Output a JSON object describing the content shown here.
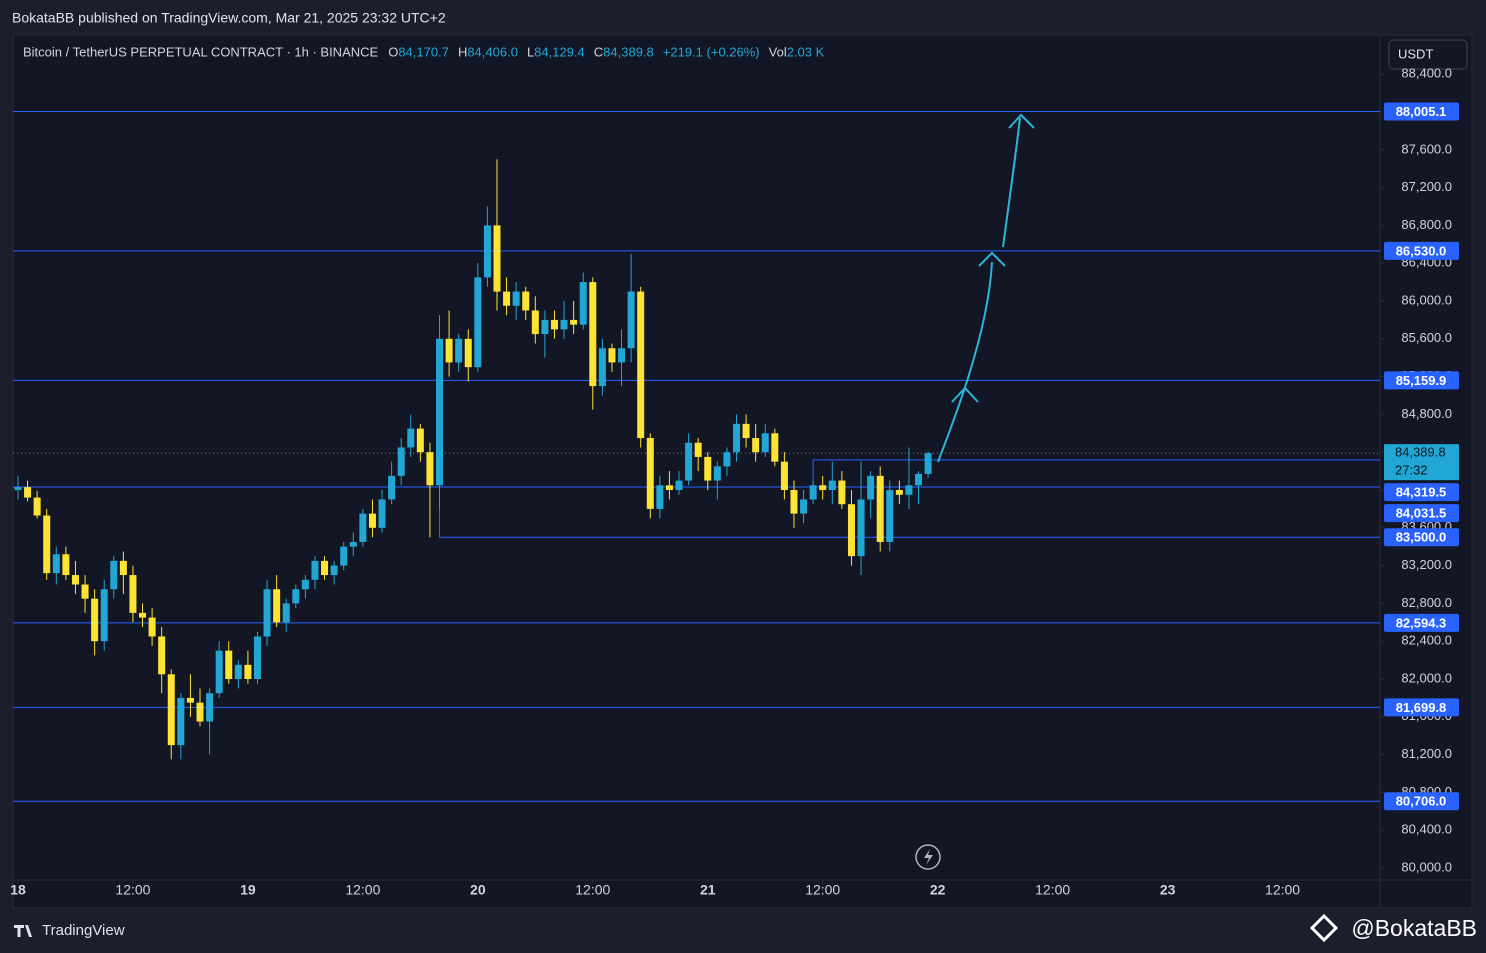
{
  "header": {
    "publisher": "BokataBB published on TradingView.com, Mar 21, 2025 23:32 UTC+2"
  },
  "legend": {
    "symbol": "Bitcoin / TetherUS PERPETUAL CONTRACT · 1h · BINANCE",
    "open_label": "O",
    "open": "84,170.7",
    "high_label": "H",
    "high": "84,406.0",
    "low_label": "L",
    "low": "84,129.4",
    "close_label": "C",
    "close": "84,389.8",
    "change": "+219.1 (+0.26%)",
    "vol_label": "Vol",
    "vol": "2.03 K"
  },
  "currency_button": "USDT",
  "footer": {
    "brand": "TradingView",
    "watermark": "@BokataBB"
  },
  "chart_data": {
    "type": "candlestick",
    "up_color": "#22a6d4",
    "down_color": "#fde434",
    "level_color": "#2962ff",
    "xlim": [
      -0.52,
      142.17
    ],
    "ylim": [
      79873,
      88815
    ],
    "xticks": [
      {
        "value": 0,
        "label": "18"
      },
      {
        "value": 12,
        "label": "12:00"
      },
      {
        "value": 24,
        "label": "19"
      },
      {
        "value": 36,
        "label": "12:00"
      },
      {
        "value": 48,
        "label": "20"
      },
      {
        "value": 60,
        "label": "12:00"
      },
      {
        "value": 72,
        "label": "21"
      },
      {
        "value": 84,
        "label": "12:00"
      },
      {
        "value": 96,
        "label": "22"
      },
      {
        "value": 108,
        "label": "12:00"
      },
      {
        "value": 120,
        "label": "23"
      },
      {
        "value": 132,
        "label": "12:00"
      }
    ],
    "yticks": [
      {
        "value": 80000,
        "label": "80,000.0"
      },
      {
        "value": 80400,
        "label": "80,400.0"
      },
      {
        "value": 80800,
        "label": "80,800.0"
      },
      {
        "value": 81200,
        "label": "81,200.0"
      },
      {
        "value": 81600,
        "label": "81,600.0"
      },
      {
        "value": 82000,
        "label": "82,000.0"
      },
      {
        "value": 82400,
        "label": "82,400.0"
      },
      {
        "value": 82800,
        "label": "82,800.0"
      },
      {
        "value": 83200,
        "label": "83,200.0"
      },
      {
        "value": 83600,
        "label": "83,600.0"
      },
      {
        "value": 84000,
        "label": "84,000.0"
      },
      {
        "value": 84400,
        "label": "84,400.0"
      },
      {
        "value": 84800,
        "label": "84,800.0"
      },
      {
        "value": 85200,
        "label": "85,200.0"
      },
      {
        "value": 85600,
        "label": "85,600.0"
      },
      {
        "value": 86000,
        "label": "86,000.0"
      },
      {
        "value": 86400,
        "label": "86,400.0"
      },
      {
        "value": 86800,
        "label": "86,800.0"
      },
      {
        "value": 87200,
        "label": "87,200.0"
      },
      {
        "value": 87600,
        "label": "87,600.0"
      },
      {
        "value": 88000,
        "label": "88,000.0"
      },
      {
        "value": 88400,
        "label": "88,400.0"
      }
    ],
    "levels": [
      {
        "value": 88005.1,
        "label": "88,005.1",
        "from": -0.52
      },
      {
        "value": 86530,
        "label": "86,530.0",
        "from": -0.52
      },
      {
        "value": 85159.9,
        "label": "85,159.9",
        "from": -0.52
      },
      {
        "value": 84319.5,
        "label": "84,319.5",
        "from": 83
      },
      {
        "value": 84031.5,
        "label": "84,031.5",
        "from": -0.52
      },
      {
        "value": 83500,
        "label": "83,500.0",
        "from": 44
      },
      {
        "value": 82594.3,
        "label": "82,594.3",
        "from": -0.52
      },
      {
        "value": 81699.8,
        "label": "81,699.8",
        "from": -0.52
      },
      {
        "value": 80706,
        "label": "80,706.0",
        "from": -0.52
      }
    ],
    "last_price": {
      "value": 84389.8,
      "label": "84,389.8",
      "countdown": "27:32"
    },
    "x": [
      0,
      1,
      2,
      3,
      4,
      5,
      6,
      7,
      8,
      9,
      10,
      11,
      12,
      13,
      14,
      15,
      16,
      17,
      18,
      19,
      20,
      21,
      22,
      23,
      24,
      25,
      26,
      27,
      28,
      29,
      30,
      31,
      32,
      33,
      34,
      35,
      36,
      37,
      38,
      39,
      40,
      41,
      42,
      43,
      44,
      45,
      46,
      47,
      48,
      49,
      50,
      51,
      52,
      53,
      54,
      55,
      56,
      57,
      58,
      59,
      60,
      61,
      62,
      63,
      64,
      65,
      66,
      67,
      68,
      69,
      70,
      71,
      72,
      73,
      74,
      75,
      76,
      77,
      78,
      79,
      80,
      81,
      82,
      83,
      84,
      85,
      86,
      87,
      88,
      89,
      90,
      91,
      92,
      93,
      94,
      95
    ],
    "ohlc": [
      [
        84000,
        84150,
        83900,
        84030
      ],
      [
        84030,
        84100,
        83880,
        83920
      ],
      [
        83920,
        83990,
        83700,
        83730
      ],
      [
        83730,
        83800,
        83050,
        83120
      ],
      [
        83120,
        83400,
        83000,
        83320
      ],
      [
        83320,
        83400,
        83050,
        83100
      ],
      [
        83100,
        83250,
        82900,
        83000
      ],
      [
        83000,
        83100,
        82700,
        82850
      ],
      [
        82850,
        82950,
        82250,
        82400
      ],
      [
        82400,
        83050,
        82300,
        82950
      ],
      [
        82950,
        83300,
        82850,
        83250
      ],
      [
        83250,
        83350,
        82900,
        83100
      ],
      [
        83100,
        83200,
        82600,
        82700
      ],
      [
        82700,
        82800,
        82550,
        82650
      ],
      [
        82650,
        82750,
        82350,
        82450
      ],
      [
        82450,
        82550,
        81850,
        82050
      ],
      [
        82050,
        82100,
        81150,
        81300
      ],
      [
        81300,
        81850,
        81150,
        81800
      ],
      [
        81800,
        82050,
        81600,
        81750
      ],
      [
        81750,
        81900,
        81500,
        81550
      ],
      [
        81550,
        81900,
        81200,
        81850
      ],
      [
        81850,
        82400,
        81800,
        82300
      ],
      [
        82300,
        82400,
        81950,
        82000
      ],
      [
        82000,
        82200,
        81900,
        82150
      ],
      [
        82150,
        82300,
        81950,
        82000
      ],
      [
        82000,
        82500,
        81950,
        82450
      ],
      [
        82450,
        83050,
        82350,
        82950
      ],
      [
        82950,
        83100,
        82550,
        82600
      ],
      [
        82600,
        82850,
        82500,
        82800
      ],
      [
        82800,
        83000,
        82750,
        82950
      ],
      [
        82950,
        83100,
        82850,
        83050
      ],
      [
        83050,
        83300,
        82950,
        83250
      ],
      [
        83250,
        83300,
        83050,
        83100
      ],
      [
        83100,
        83250,
        83000,
        83200
      ],
      [
        83200,
        83450,
        83150,
        83400
      ],
      [
        83400,
        83550,
        83300,
        83450
      ],
      [
        83450,
        83800,
        83400,
        83750
      ],
      [
        83750,
        83900,
        83500,
        83600
      ],
      [
        83600,
        84000,
        83550,
        83900
      ],
      [
        83900,
        84300,
        83850,
        84150
      ],
      [
        84150,
        84550,
        84050,
        84450
      ],
      [
        84450,
        84800,
        84350,
        84650
      ],
      [
        84650,
        84700,
        84300,
        84400
      ],
      [
        84400,
        84500,
        83500,
        84050
      ],
      [
        84050,
        85850,
        83800,
        85600
      ],
      [
        85600,
        85900,
        85200,
        85350
      ],
      [
        85350,
        85650,
        85250,
        85600
      ],
      [
        85600,
        85700,
        85150,
        85300
      ],
      [
        85300,
        86400,
        85250,
        86250
      ],
      [
        86250,
        87000,
        86150,
        86800
      ],
      [
        86800,
        87500,
        85900,
        86100
      ],
      [
        86100,
        86250,
        85850,
        85950
      ],
      [
        85950,
        86200,
        85800,
        86100
      ],
      [
        86100,
        86150,
        85800,
        85900
      ],
      [
        85900,
        86050,
        85550,
        85650
      ],
      [
        85650,
        85900,
        85400,
        85800
      ],
      [
        85800,
        85900,
        85600,
        85700
      ],
      [
        85700,
        86000,
        85600,
        85800
      ],
      [
        85800,
        86000,
        85650,
        85750
      ],
      [
        85750,
        86300,
        85700,
        86200
      ],
      [
        86200,
        86250,
        84850,
        85100
      ],
      [
        85100,
        85600,
        85000,
        85500
      ],
      [
        85500,
        85550,
        85250,
        85350
      ],
      [
        85350,
        85700,
        85100,
        85500
      ],
      [
        85500,
        86500,
        85350,
        86100
      ],
      [
        86100,
        86150,
        84450,
        84550
      ],
      [
        84550,
        84600,
        83700,
        83800
      ],
      [
        83800,
        84150,
        83700,
        84050
      ],
      [
        84050,
        84200,
        83900,
        84000
      ],
      [
        84000,
        84200,
        83950,
        84100
      ],
      [
        84100,
        84600,
        84050,
        84500
      ],
      [
        84500,
        84550,
        84200,
        84350
      ],
      [
        84350,
        84400,
        84000,
        84100
      ],
      [
        84100,
        84300,
        83900,
        84250
      ],
      [
        84250,
        84450,
        84150,
        84400
      ],
      [
        84400,
        84800,
        84300,
        84700
      ],
      [
        84700,
        84800,
        84450,
        84550
      ],
      [
        84550,
        84700,
        84300,
        84400
      ],
      [
        84400,
        84700,
        84350,
        84600
      ],
      [
        84600,
        84650,
        84250,
        84300
      ],
      [
        84300,
        84400,
        83900,
        84000
      ],
      [
        84000,
        84100,
        83600,
        83750
      ],
      [
        83750,
        84000,
        83650,
        83900
      ],
      [
        83900,
        84100,
        83850,
        84050
      ],
      [
        84050,
        84150,
        83900,
        84000
      ],
      [
        84000,
        84300,
        83850,
        84100
      ],
      [
        84100,
        84200,
        83800,
        83850
      ],
      [
        83850,
        84000,
        83200,
        83300
      ],
      [
        83300,
        84300,
        83100,
        83900
      ],
      [
        83900,
        84200,
        83700,
        84150
      ],
      [
        84150,
        84250,
        83350,
        83450
      ],
      [
        83450,
        84100,
        83350,
        84000
      ],
      [
        84000,
        84100,
        83850,
        83950
      ],
      [
        83950,
        84450,
        83800,
        84050
      ],
      [
        84050,
        84200,
        83850,
        84170.7
      ],
      [
        84170.7,
        84406,
        84129.4,
        84389.8
      ]
    ]
  }
}
